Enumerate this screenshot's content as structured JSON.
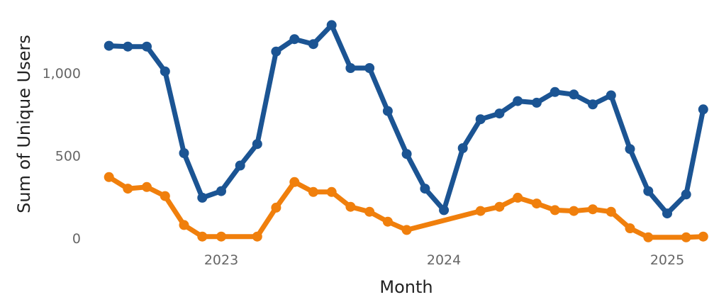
{
  "chart_data": {
    "type": "line",
    "xlabel": "Month",
    "ylabel": "Sum of Unique Users",
    "ylim": [
      0,
      1350
    ],
    "y_ticks": [
      {
        "value": 0,
        "label": "0"
      },
      {
        "value": 500,
        "label": "500"
      },
      {
        "value": 1000,
        "label": "1,000"
      }
    ],
    "x_ticks": [
      {
        "date": "2023-01-01",
        "label": "2023"
      },
      {
        "date": "2024-01-01",
        "label": "2024"
      },
      {
        "date": "2025-01-01",
        "label": "2025"
      }
    ],
    "xlim": [
      "2022-06-01",
      "2025-04-01"
    ],
    "grid": false,
    "legend": "none",
    "series": [
      {
        "color": "#1b5493",
        "points": [
          {
            "x": "2022-07-01",
            "y": 1165
          },
          {
            "x": "2022-08-01",
            "y": 1160
          },
          {
            "x": "2022-09-01",
            "y": 1160
          },
          {
            "x": "2022-10-01",
            "y": 1010
          },
          {
            "x": "2022-11-01",
            "y": 515
          },
          {
            "x": "2022-12-01",
            "y": 245
          },
          {
            "x": "2023-01-01",
            "y": 285
          },
          {
            "x": "2023-02-01",
            "y": 440
          },
          {
            "x": "2023-03-01",
            "y": 570
          },
          {
            "x": "2023-04-01",
            "y": 1130
          },
          {
            "x": "2023-05-01",
            "y": 1205
          },
          {
            "x": "2023-06-01",
            "y": 1175
          },
          {
            "x": "2023-07-01",
            "y": 1290
          },
          {
            "x": "2023-08-01",
            "y": 1030
          },
          {
            "x": "2023-09-01",
            "y": 1030
          },
          {
            "x": "2023-10-01",
            "y": 770
          },
          {
            "x": "2023-11-01",
            "y": 510
          },
          {
            "x": "2023-12-01",
            "y": 300
          },
          {
            "x": "2024-01-01",
            "y": 170
          },
          {
            "x": "2024-02-01",
            "y": 545
          },
          {
            "x": "2024-03-01",
            "y": 720
          },
          {
            "x": "2024-04-01",
            "y": 755
          },
          {
            "x": "2024-05-01",
            "y": 830
          },
          {
            "x": "2024-06-01",
            "y": 820
          },
          {
            "x": "2024-07-01",
            "y": 885
          },
          {
            "x": "2024-08-01",
            "y": 870
          },
          {
            "x": "2024-09-01",
            "y": 810
          },
          {
            "x": "2024-10-01",
            "y": 865
          },
          {
            "x": "2024-11-01",
            "y": 540
          },
          {
            "x": "2024-12-01",
            "y": 285
          },
          {
            "x": "2025-01-01",
            "y": 150
          },
          {
            "x": "2025-02-01",
            "y": 265
          },
          {
            "x": "2025-03-01",
            "y": 780
          }
        ]
      },
      {
        "color": "#f07f0c",
        "points": [
          {
            "x": "2022-07-01",
            "y": 370
          },
          {
            "x": "2022-08-01",
            "y": 300
          },
          {
            "x": "2022-09-01",
            "y": 310
          },
          {
            "x": "2022-10-01",
            "y": 255
          },
          {
            "x": "2022-11-01",
            "y": 80
          },
          {
            "x": "2022-12-01",
            "y": 10
          },
          {
            "x": "2023-01-01",
            "y": 10
          },
          {
            "x": "2023-03-01",
            "y": 10
          },
          {
            "x": "2023-04-01",
            "y": 185
          },
          {
            "x": "2023-05-01",
            "y": 340
          },
          {
            "x": "2023-06-01",
            "y": 280
          },
          {
            "x": "2023-07-01",
            "y": 280
          },
          {
            "x": "2023-08-01",
            "y": 190
          },
          {
            "x": "2023-09-01",
            "y": 160
          },
          {
            "x": "2023-10-01",
            "y": 100
          },
          {
            "x": "2023-11-01",
            "y": 50
          },
          {
            "x": "2024-03-01",
            "y": 165
          },
          {
            "x": "2024-04-01",
            "y": 190
          },
          {
            "x": "2024-05-01",
            "y": 245
          },
          {
            "x": "2024-06-01",
            "y": 210
          },
          {
            "x": "2024-07-01",
            "y": 170
          },
          {
            "x": "2024-08-01",
            "y": 165
          },
          {
            "x": "2024-09-01",
            "y": 175
          },
          {
            "x": "2024-10-01",
            "y": 160
          },
          {
            "x": "2024-11-01",
            "y": 60
          },
          {
            "x": "2024-12-01",
            "y": 5
          },
          {
            "x": "2025-02-01",
            "y": 5
          },
          {
            "x": "2025-03-01",
            "y": 10
          }
        ]
      }
    ]
  }
}
